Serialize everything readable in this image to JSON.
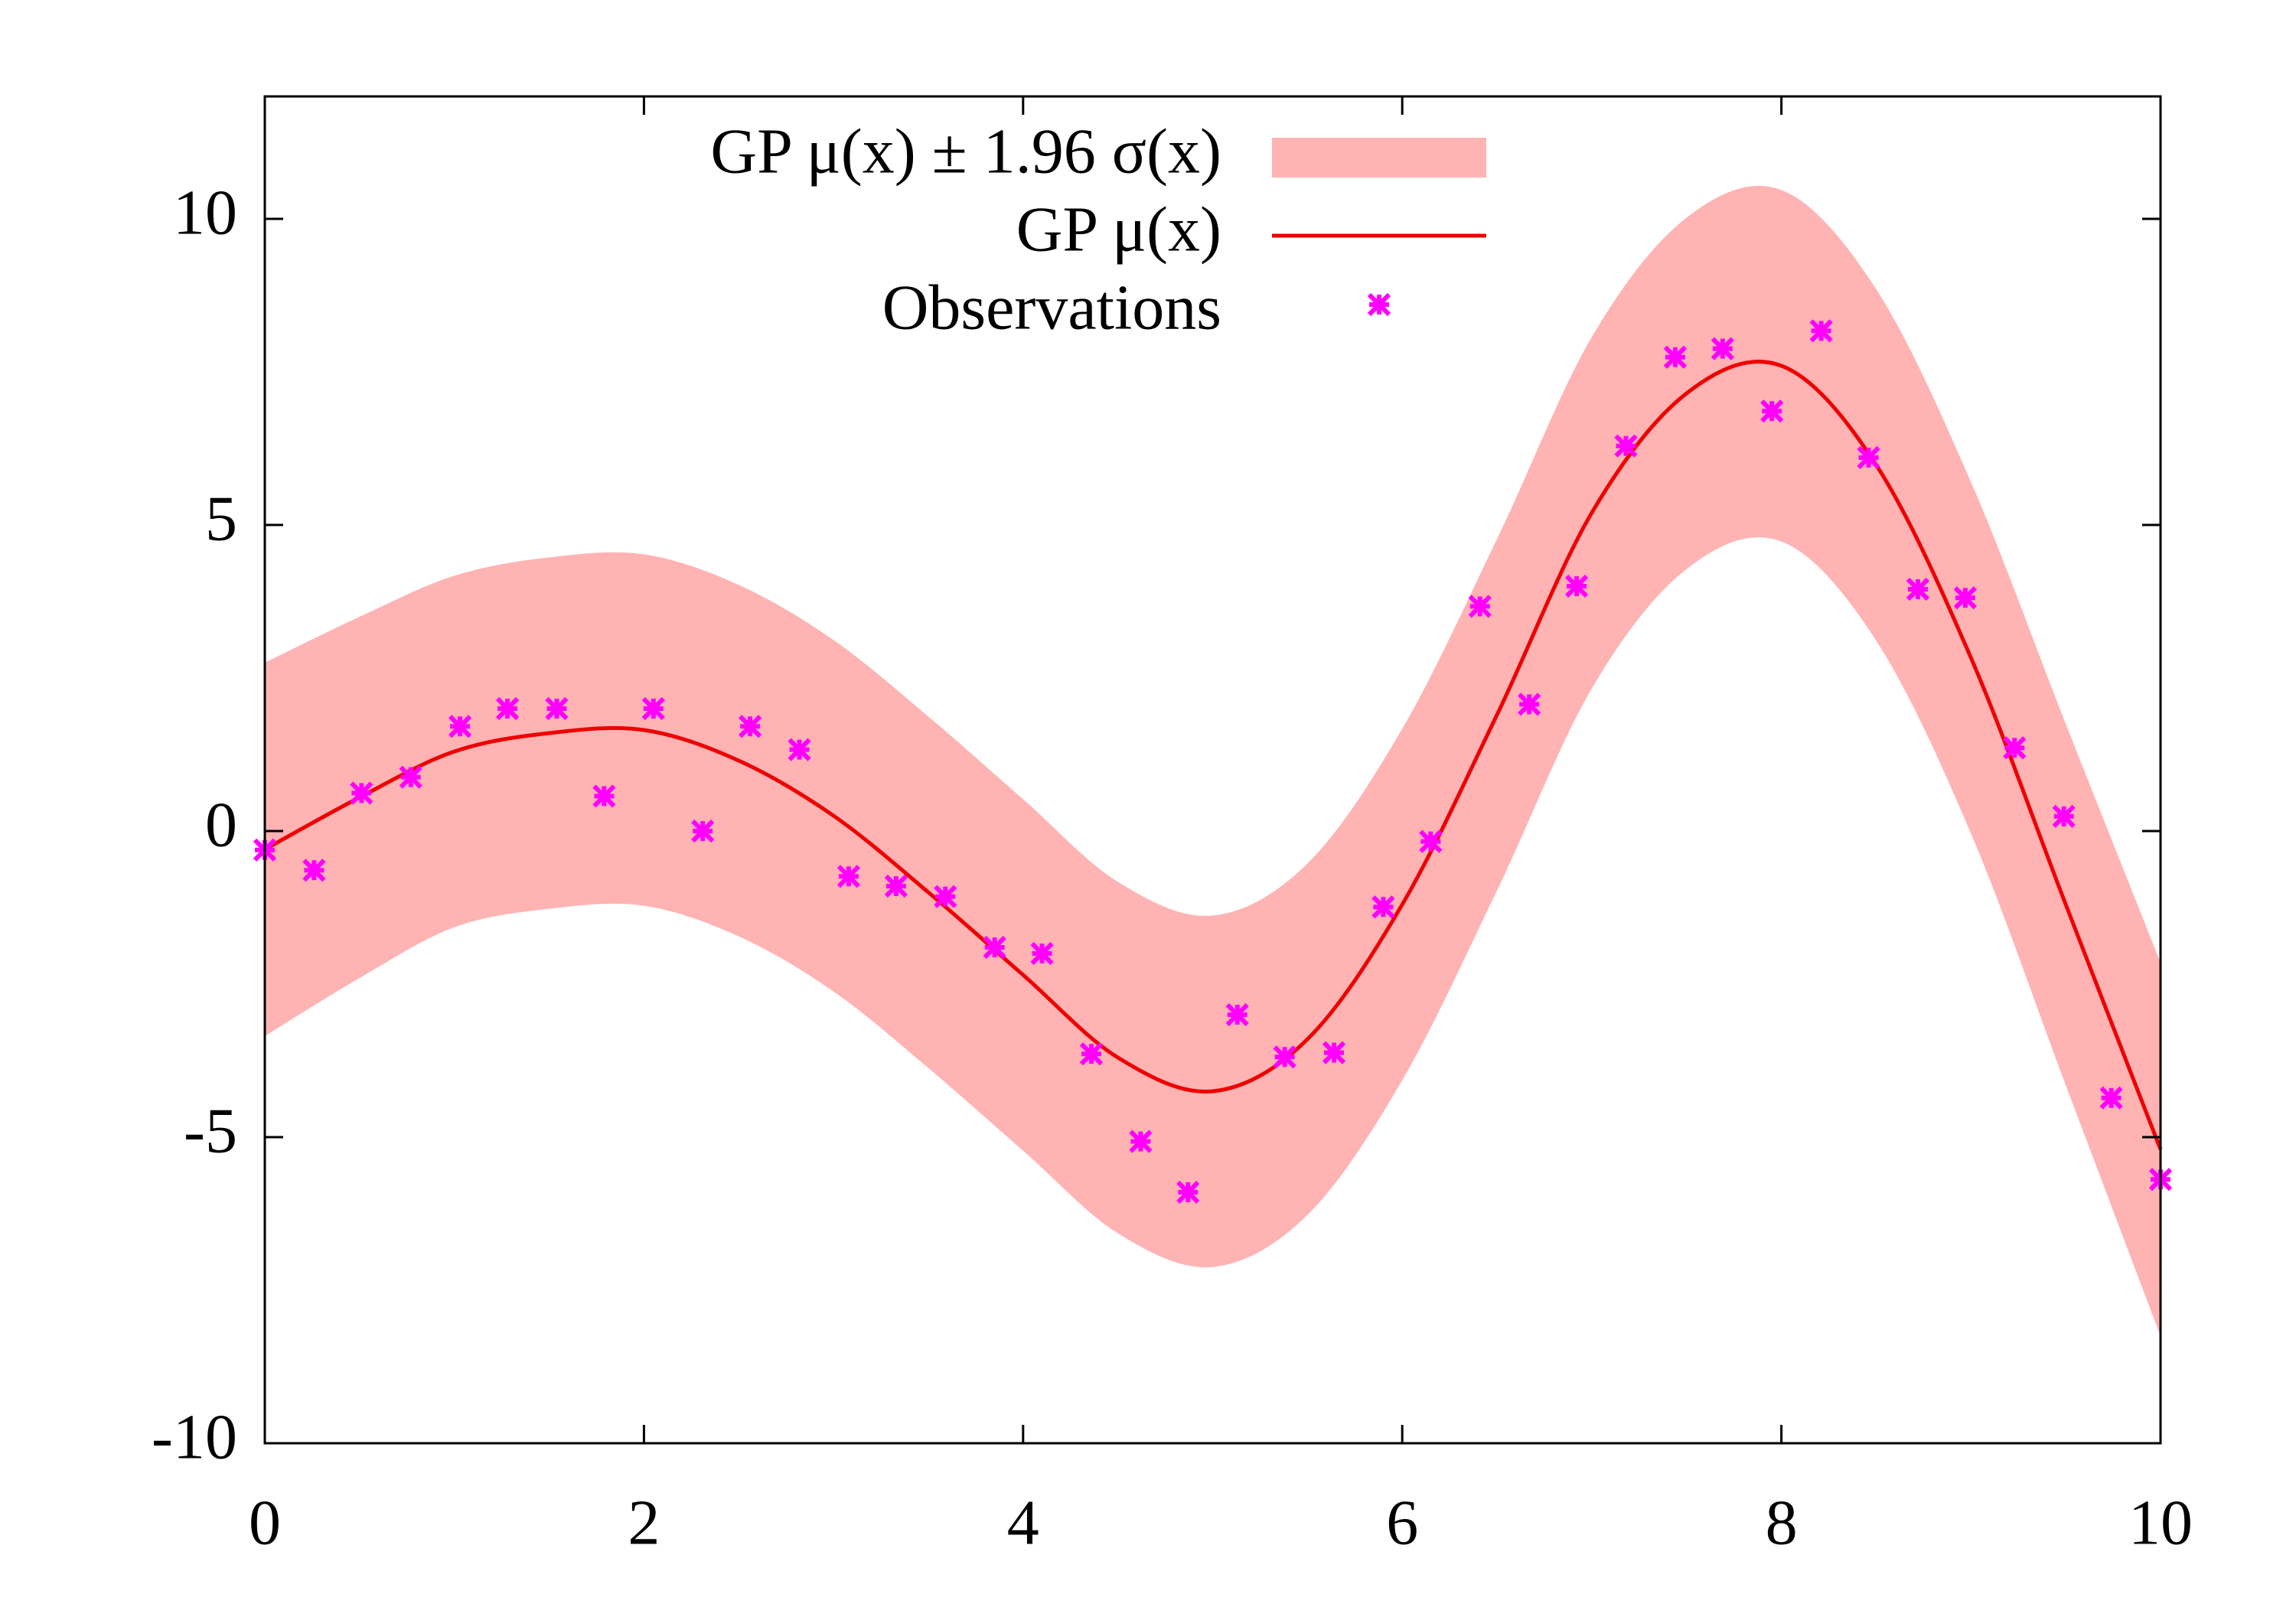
{
  "chart_data": {
    "type": "line",
    "x": [
      0,
      0.5,
      1,
      1.5,
      2,
      2.5,
      3,
      3.5,
      4,
      4.5,
      5,
      5.5,
      6,
      6.5,
      7,
      7.5,
      8,
      8.5,
      9,
      9.5,
      10
    ],
    "series": [
      {
        "name": "GP μ(x) ± 1.96 σ(x)",
        "color": "#ffb3b3",
        "kind": "band",
        "upper": [
          2.75,
          3.5,
          4.17,
          4.47,
          4.52,
          4.02,
          3.12,
          1.87,
          0.52,
          -0.83,
          -1.38,
          -0.53,
          1.67,
          4.77,
          8.07,
          10.02,
          10.47,
          8.85,
          5.7,
          1.75,
          -2.15
        ],
        "lower": [
          -3.35,
          -2.4,
          -1.57,
          -1.27,
          -1.22,
          -1.72,
          -2.62,
          -3.87,
          -5.22,
          -6.57,
          -7.12,
          -6.27,
          -4.07,
          -0.97,
          2.33,
          4.28,
          4.73,
          3.11,
          -0.04,
          -4.15,
          -8.25
        ]
      },
      {
        "name": "GP μ(x)",
        "color": "#ee0000",
        "kind": "line",
        "values": [
          -0.3,
          0.55,
          1.3,
          1.6,
          1.65,
          1.15,
          0.25,
          -1.0,
          -2.35,
          -3.7,
          -4.25,
          -3.4,
          -1.2,
          1.9,
          5.2,
          7.15,
          7.6,
          5.98,
          2.83,
          -1.2,
          -5.2
        ]
      },
      {
        "name": "Observations",
        "color": "#ff00ff",
        "kind": "points",
        "x": [
          0,
          0.26,
          0.51,
          0.77,
          1.03,
          1.28,
          1.54,
          1.79,
          2.05,
          2.31,
          2.56,
          2.82,
          3.08,
          3.33,
          3.59,
          3.85,
          4.1,
          4.36,
          4.62,
          4.87,
          5.13,
          5.38,
          5.64,
          5.9,
          6.15,
          6.41,
          6.67,
          6.92,
          7.18,
          7.44,
          7.69,
          7.95,
          8.21,
          8.46,
          8.72,
          8.97,
          9.23,
          9.49,
          9.74,
          10
        ],
        "values": [
          -0.31,
          -0.64,
          0.62,
          0.88,
          1.71,
          2.0,
          2.0,
          0.57,
          2.0,
          0,
          1.71,
          1.33,
          -0.74,
          -0.9,
          -1.07,
          -1.9,
          -2.0,
          -3.64,
          -5.07,
          -5.9,
          -3.0,
          -3.69,
          -3.62,
          -1.24,
          -0.17,
          3.67,
          2.07,
          4.0,
          6.29,
          7.74,
          7.88,
          6.86,
          8.17,
          6.1,
          3.95,
          3.81,
          1.36,
          0.24,
          -4.36,
          -5.69
        ]
      }
    ],
    "xlim": [
      0,
      10
    ],
    "xticks": [
      0,
      2,
      4,
      6,
      8,
      10
    ],
    "ylim": [
      -10,
      12
    ],
    "yticks": [
      -10,
      -5,
      0,
      5,
      10
    ],
    "legend": "top-center"
  }
}
